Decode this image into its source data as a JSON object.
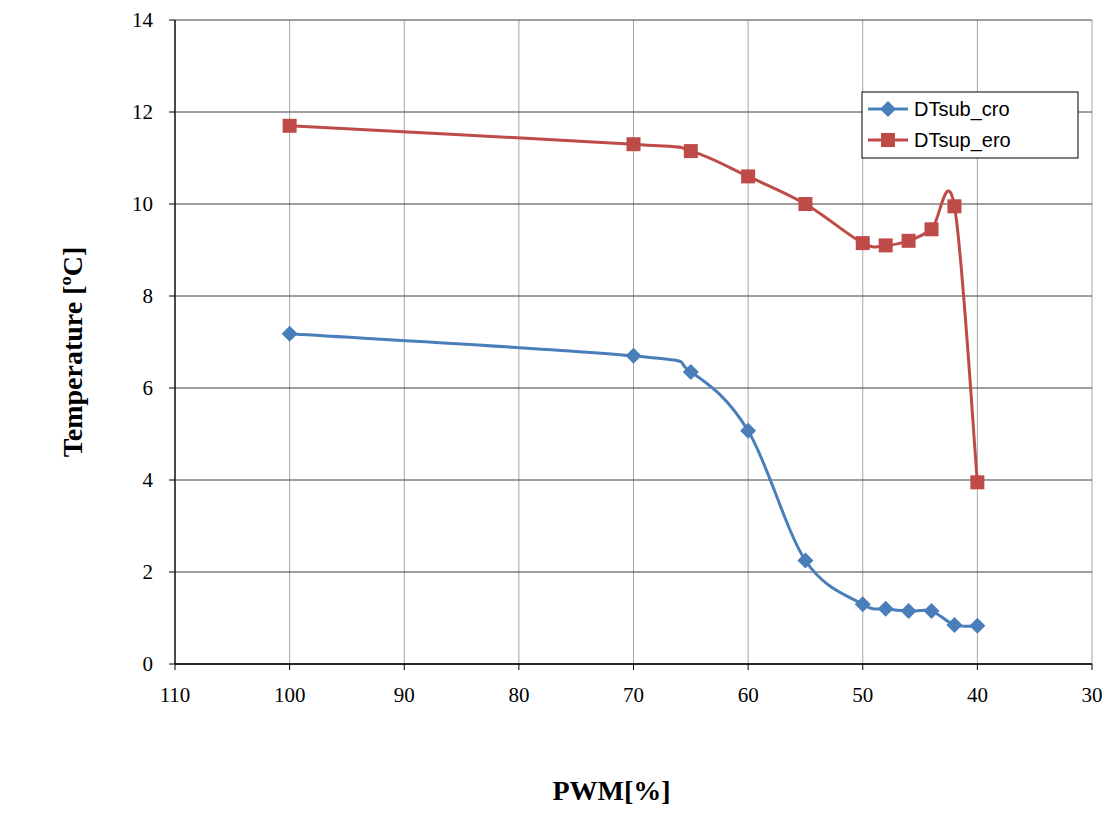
{
  "chart_data": {
    "type": "line",
    "x_label": "PWM[%]",
    "y_label": "Temperature [ºC]",
    "x": [
      100,
      70,
      65,
      60,
      55,
      50,
      48,
      46,
      44,
      42,
      40
    ],
    "series": [
      {
        "name": "DTsub_cro",
        "color": "#4a7ebb",
        "marker": "diamond",
        "values": [
          7.18,
          6.7,
          6.35,
          5.07,
          2.25,
          1.3,
          1.2,
          1.15,
          1.15,
          0.85,
          0.83
        ]
      },
      {
        "name": "DTsup_ero",
        "color": "#be4b48",
        "marker": "square",
        "values": [
          11.7,
          11.3,
          11.15,
          10.6,
          10.0,
          9.15,
          9.1,
          9.2,
          9.45,
          9.95,
          3.95
        ]
      }
    ],
    "xlim": [
      110,
      30
    ],
    "xticks": [
      110,
      100,
      90,
      80,
      70,
      60,
      50,
      40,
      30
    ],
    "ylim": [
      0,
      14
    ],
    "yticks": [
      0,
      2,
      4,
      6,
      8,
      10,
      12,
      14
    ],
    "grid": true,
    "legend": "upper right"
  }
}
